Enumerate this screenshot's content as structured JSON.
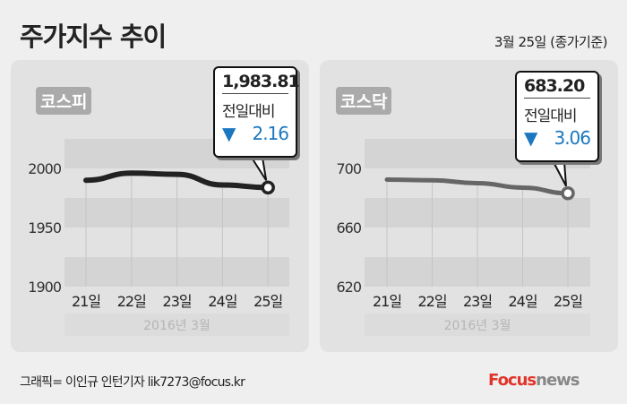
{
  "header": {
    "title": "주가지수 추이",
    "date": "3월 25일 (종가기준)"
  },
  "footer": {
    "credit": "그래픽= 이인규 인턴기자 lik7273@focus.kr",
    "logo_focus": "Focus",
    "logo_news": "news"
  },
  "colors": {
    "background": "#efefef",
    "panel": "#e2e2e2",
    "band": "#d4d4d4",
    "down": "#1b78c0",
    "kospi_line": "#222222",
    "kosdaq_line": "#666666",
    "logo_red": "#e2352a"
  },
  "chart_data": [
    {
      "type": "line",
      "label": "코스피",
      "categories": [
        "21일",
        "22일",
        "23일",
        "24일",
        "25일"
      ],
      "xlabel": "2016년  3월",
      "values": [
        1990,
        1996,
        1995,
        1986,
        1983.81
      ],
      "yticks": [
        1900,
        1950,
        2000
      ],
      "ylim": [
        1900,
        2025
      ],
      "callout": {
        "value": "1,983.81",
        "label": "전일대비",
        "change_icon": "down-triangle",
        "change_symbol": "▼",
        "change": "2.16"
      }
    },
    {
      "type": "line",
      "label": "코스닥",
      "categories": [
        "21일",
        "22일",
        "23일",
        "24일",
        "25일"
      ],
      "xlabel": "2016년  3월",
      "values": [
        692.4,
        692,
        690,
        687,
        683.2
      ],
      "yticks": [
        620,
        660,
        700
      ],
      "ylim": [
        620,
        720
      ],
      "callout": {
        "value": "683.20",
        "label": "전일대비",
        "change_icon": "down-triangle",
        "change_symbol": "▼",
        "change": "3.06"
      }
    }
  ]
}
